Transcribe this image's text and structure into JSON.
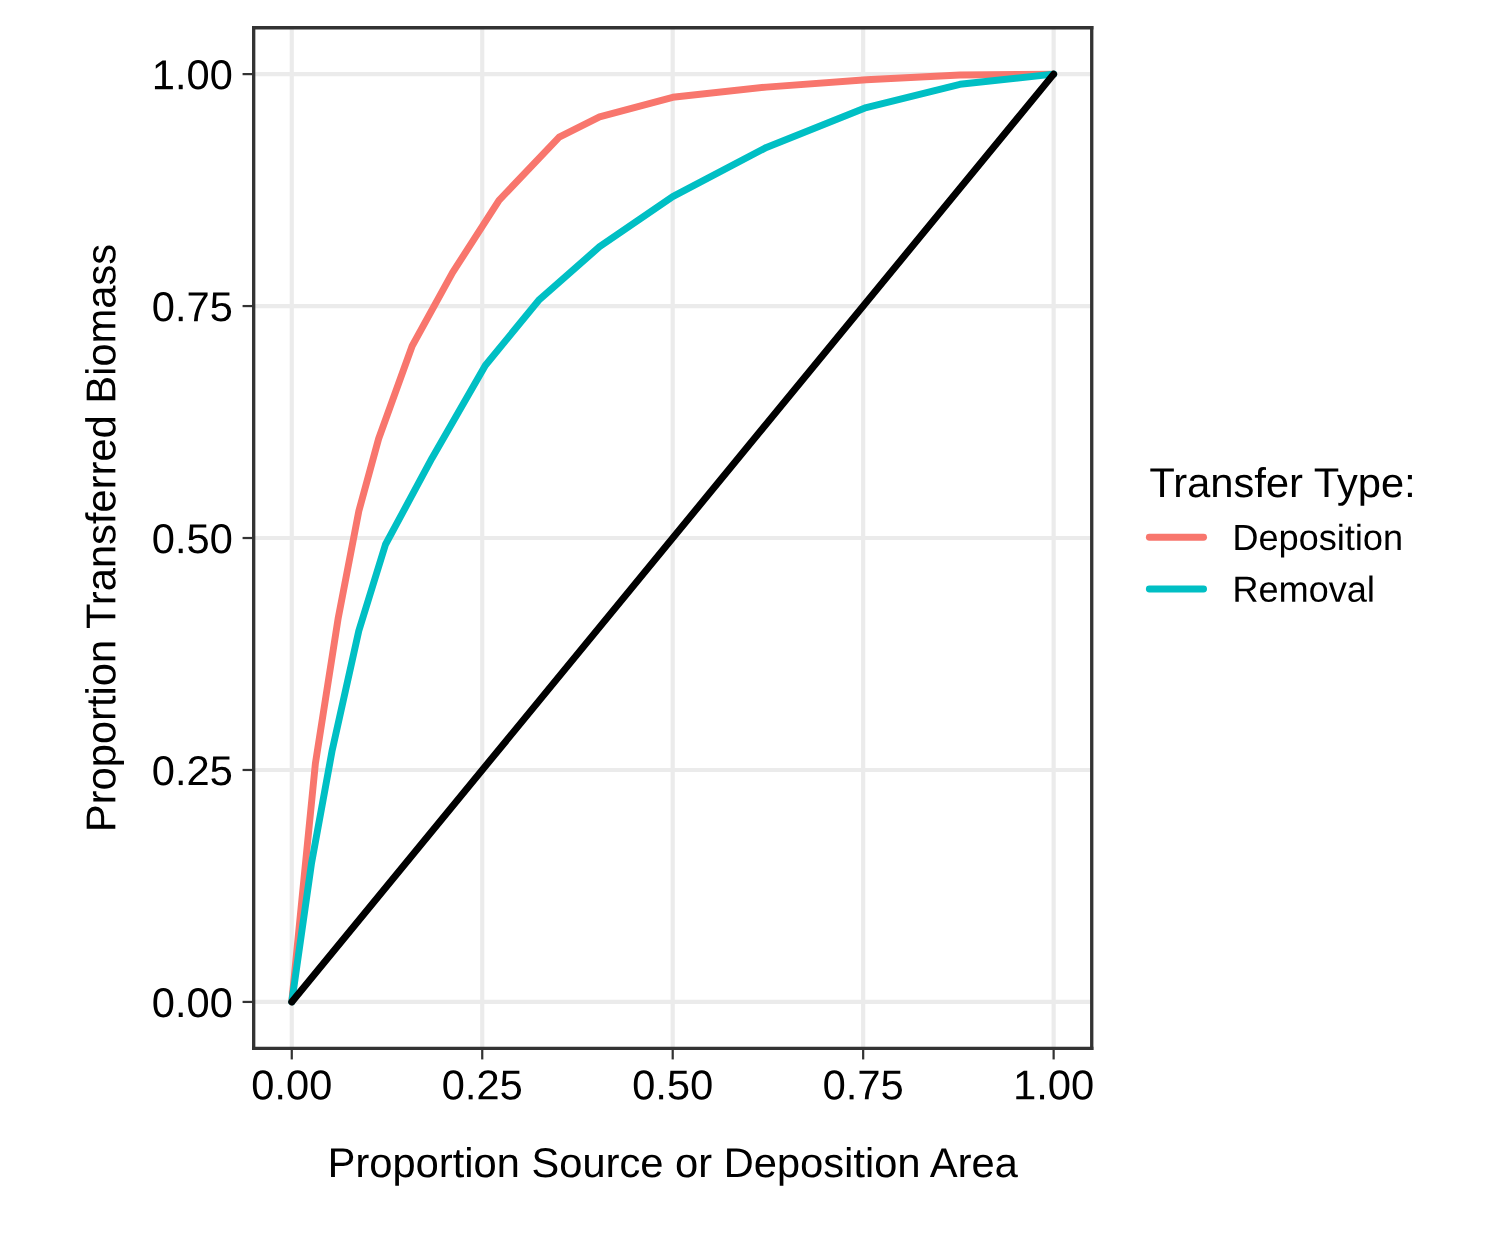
{
  "chart_data": {
    "type": "line",
    "xlabel": "Proportion Source or Deposition Area",
    "ylabel": "Proportion Transferred Biomass",
    "legend_title": "Transfer Type:",
    "legend": "right",
    "grid": true,
    "marker": "none",
    "line_style": "solid",
    "xlim": [
      -0.05,
      1.05
    ],
    "ylim": [
      -0.05,
      1.05
    ],
    "xticks": [
      {
        "value": 0,
        "label": "0.00"
      },
      {
        "value": 0.25,
        "label": "0.25"
      },
      {
        "value": 0.5,
        "label": "0.50"
      },
      {
        "value": 0.75,
        "label": "0.75"
      },
      {
        "value": 1,
        "label": "1.00"
      }
    ],
    "yticks": [
      {
        "value": 0,
        "label": "0.00"
      },
      {
        "value": 0.25,
        "label": "0.25"
      },
      {
        "value": 0.5,
        "label": "0.50"
      },
      {
        "value": 0.75,
        "label": "0.75"
      },
      {
        "value": 1,
        "label": "1.00"
      }
    ],
    "series": [
      {
        "name": "Deposition",
        "color": "#f8766d",
        "x": [
          0,
          0.031,
          0.061,
          0.088,
          0.114,
          0.158,
          0.211,
          0.272,
          0.351,
          0.404,
          0.5,
          0.623,
          0.754,
          0.877,
          1
        ],
        "values": [
          0,
          0.257,
          0.414,
          0.529,
          0.607,
          0.707,
          0.786,
          0.864,
          0.932,
          0.954,
          0.975,
          0.986,
          0.994,
          0.999,
          1
        ]
      },
      {
        "name": "Removal",
        "color": "#00bfc4",
        "x": [
          0,
          0.026,
          0.053,
          0.088,
          0.123,
          0.184,
          0.254,
          0.325,
          0.404,
          0.5,
          0.623,
          0.754,
          0.877,
          1
        ],
        "values": [
          0,
          0.15,
          0.271,
          0.4,
          0.493,
          0.586,
          0.686,
          0.757,
          0.814,
          0.868,
          0.921,
          0.964,
          0.989,
          1
        ]
      },
      {
        "color": "#000000",
        "x": [
          0,
          1
        ],
        "values": [
          0,
          1
        ]
      }
    ]
  }
}
